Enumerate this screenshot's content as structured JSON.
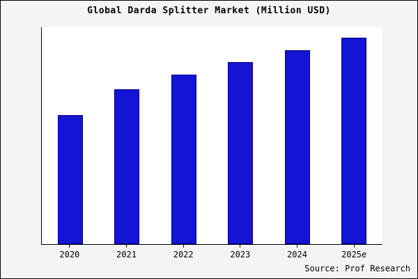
{
  "title": "Global Darda Splitter Market (Million USD)",
  "source": "Source: Prof Research",
  "colors": {
    "bar": "#1414d4",
    "bar_border": "#00008b",
    "background": "#f4f4f4",
    "plot_background": "#ffffff"
  },
  "chart_data": {
    "type": "bar",
    "title": "Global Darda Splitter Market (Million USD)",
    "categories": [
      "2020",
      "2021",
      "2022",
      "2023",
      "2024",
      "2025e"
    ],
    "values": [
      62.5,
      75,
      82,
      88,
      94,
      100
    ],
    "xlabel": "",
    "ylabel": "",
    "ylim": [
      0,
      105
    ],
    "grid": false,
    "legend": false,
    "source": "Source: Prof Research"
  }
}
